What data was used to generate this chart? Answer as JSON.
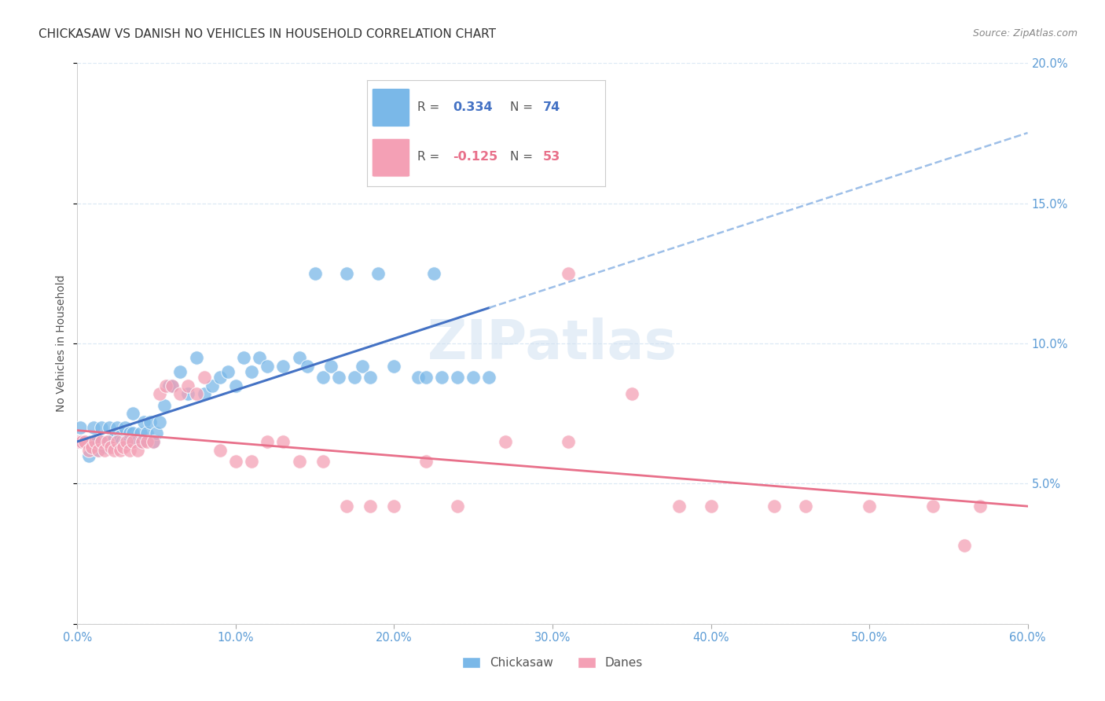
{
  "title": "CHICKASAW VS DANISH NO VEHICLES IN HOUSEHOLD CORRELATION CHART",
  "source": "Source: ZipAtlas.com",
  "ylabel": "No Vehicles in Household",
  "watermark": "ZIPatlas",
  "blue_r": "0.334",
  "blue_n": "74",
  "pink_r": "-0.125",
  "pink_n": "53",
  "legend_label1": "Chickasaw",
  "legend_label2": "Danes",
  "xlim": [
    0.0,
    0.6
  ],
  "ylim": [
    0.0,
    0.2
  ],
  "xtick_vals": [
    0.0,
    0.1,
    0.2,
    0.3,
    0.4,
    0.5,
    0.6
  ],
  "ytick_vals": [
    0.0,
    0.05,
    0.1,
    0.15,
    0.2
  ],
  "blue_scatter": "#7ab8e8",
  "pink_scatter": "#f4a0b5",
  "blue_line": "#4472c4",
  "blue_dashed": "#9dbfe8",
  "pink_line": "#e8708a",
  "tick_color": "#5b9bd5",
  "grid_color": "#dce9f5",
  "bg_color": "#ffffff",
  "chickasaw_x": [
    0.001,
    0.002,
    0.003,
    0.005,
    0.007,
    0.008,
    0.01,
    0.01,
    0.012,
    0.013,
    0.015,
    0.015,
    0.017,
    0.018,
    0.02,
    0.02,
    0.022,
    0.023,
    0.025,
    0.025,
    0.027,
    0.028,
    0.03,
    0.03,
    0.032,
    0.033,
    0.035,
    0.035,
    0.037,
    0.038,
    0.04,
    0.04,
    0.042,
    0.044,
    0.046,
    0.048,
    0.05,
    0.052,
    0.055,
    0.058,
    0.06,
    0.065,
    0.07,
    0.075,
    0.08,
    0.085,
    0.09,
    0.095,
    0.1,
    0.105,
    0.11,
    0.115,
    0.12,
    0.13,
    0.14,
    0.145,
    0.15,
    0.155,
    0.16,
    0.165,
    0.17,
    0.175,
    0.18,
    0.185,
    0.19,
    0.2,
    0.21,
    0.215,
    0.22,
    0.225,
    0.23,
    0.24,
    0.25,
    0.26
  ],
  "chickasaw_y": [
    0.065,
    0.07,
    0.065,
    0.065,
    0.06,
    0.065,
    0.065,
    0.07,
    0.065,
    0.062,
    0.065,
    0.07,
    0.063,
    0.065,
    0.065,
    0.07,
    0.065,
    0.066,
    0.065,
    0.07,
    0.067,
    0.065,
    0.065,
    0.07,
    0.065,
    0.068,
    0.068,
    0.075,
    0.065,
    0.065,
    0.065,
    0.068,
    0.072,
    0.068,
    0.072,
    0.065,
    0.068,
    0.072,
    0.078,
    0.085,
    0.085,
    0.09,
    0.082,
    0.095,
    0.082,
    0.085,
    0.088,
    0.09,
    0.085,
    0.095,
    0.09,
    0.095,
    0.092,
    0.092,
    0.095,
    0.092,
    0.125,
    0.088,
    0.092,
    0.088,
    0.125,
    0.088,
    0.092,
    0.088,
    0.125,
    0.092,
    0.165,
    0.088,
    0.088,
    0.125,
    0.088,
    0.088,
    0.088,
    0.088
  ],
  "danes_x": [
    0.001,
    0.003,
    0.005,
    0.007,
    0.009,
    0.011,
    0.013,
    0.015,
    0.017,
    0.019,
    0.021,
    0.023,
    0.025,
    0.027,
    0.029,
    0.031,
    0.033,
    0.035,
    0.038,
    0.041,
    0.044,
    0.048,
    0.052,
    0.056,
    0.06,
    0.065,
    0.07,
    0.075,
    0.08,
    0.09,
    0.1,
    0.11,
    0.12,
    0.13,
    0.14,
    0.155,
    0.17,
    0.185,
    0.2,
    0.22,
    0.24,
    0.27,
    0.31,
    0.35,
    0.4,
    0.46,
    0.31,
    0.38,
    0.44,
    0.5,
    0.54,
    0.56,
    0.57
  ],
  "danes_y": [
    0.065,
    0.065,
    0.065,
    0.062,
    0.063,
    0.065,
    0.062,
    0.065,
    0.062,
    0.065,
    0.063,
    0.062,
    0.065,
    0.062,
    0.063,
    0.065,
    0.062,
    0.065,
    0.062,
    0.065,
    0.065,
    0.065,
    0.082,
    0.085,
    0.085,
    0.082,
    0.085,
    0.082,
    0.088,
    0.062,
    0.058,
    0.058,
    0.065,
    0.065,
    0.058,
    0.058,
    0.042,
    0.042,
    0.042,
    0.058,
    0.042,
    0.065,
    0.065,
    0.082,
    0.042,
    0.042,
    0.125,
    0.042,
    0.042,
    0.042,
    0.042,
    0.028,
    0.042
  ],
  "title_fontsize": 11,
  "source_fontsize": 9,
  "tick_fontsize": 10.5
}
